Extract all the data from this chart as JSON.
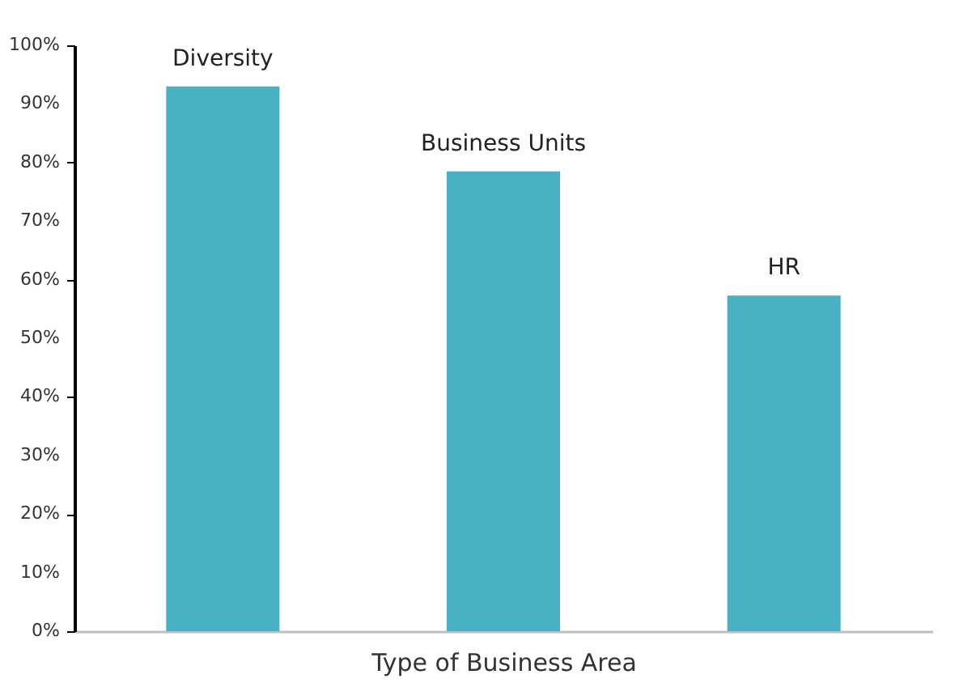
{
  "chart_data": {
    "type": "bar",
    "xlabel": "Type of Business Area",
    "categories": [
      "Diversity",
      "Business Units",
      "HR"
    ],
    "values": [
      93,
      78.5,
      57.3
    ],
    "color": "#48b1c3",
    "ylim": [
      0,
      100
    ],
    "yticks": [
      {
        "value": 0,
        "label": "0%"
      },
      {
        "value": 10,
        "label": "10%"
      },
      {
        "value": 20,
        "label": "20%"
      },
      {
        "value": 30,
        "label": "30%"
      },
      {
        "value": 40,
        "label": "40%"
      },
      {
        "value": 50,
        "label": "50%"
      },
      {
        "value": 60,
        "label": "60%"
      },
      {
        "value": 70,
        "label": "70%"
      },
      {
        "value": 80,
        "label": "80%"
      },
      {
        "value": 90,
        "label": "90%"
      },
      {
        "value": 100,
        "label": "100%"
      }
    ],
    "grid": false
  }
}
